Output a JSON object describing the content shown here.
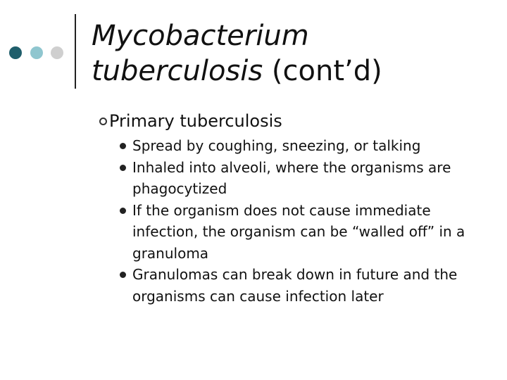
{
  "title": {
    "italic": "Mycobacterium tuberculosis",
    "suffix": "(cont’d)"
  },
  "bullets": [
    {
      "text": "Primary tuberculosis",
      "items": [
        "Spread by coughing, sneezing, or talking",
        "Inhaled into alveoli, where the organisms are phagocytized",
        "If the organism does not cause immediate infection, the organism can be “walled off” in a granuloma",
        "Granulomas can break down in future and the organisms can cause infection later"
      ]
    }
  ]
}
